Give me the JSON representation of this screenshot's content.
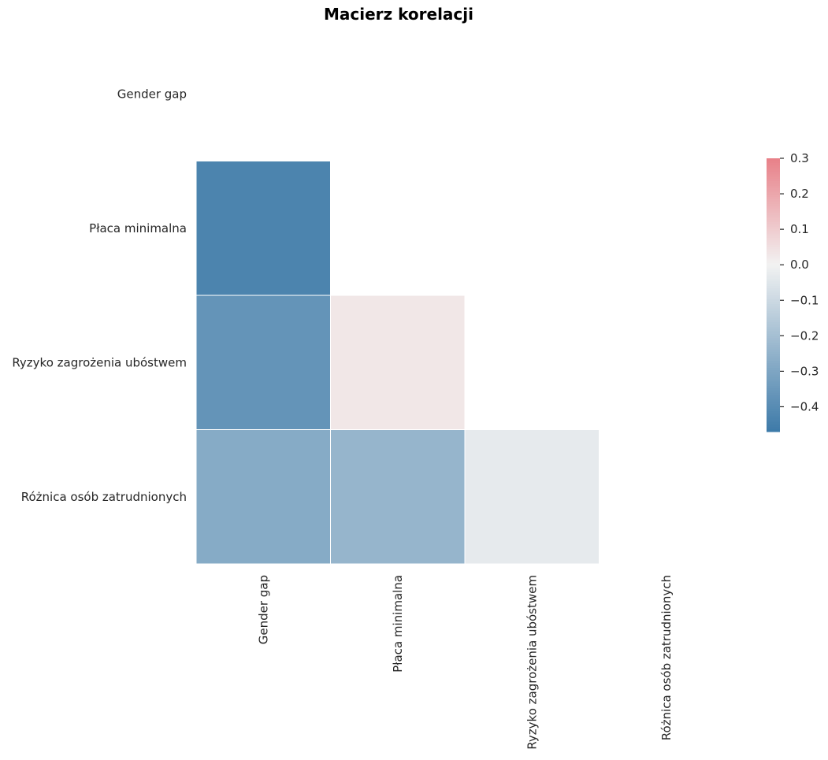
{
  "chart_data": {
    "type": "heatmap",
    "title": "Macierz korelacji",
    "variables": [
      "Gender gap",
      "Płaca minimalna",
      "Ryzyko zagrożenia ubóstwem",
      "Różnica osób zatrudnionych"
    ],
    "mask": "upper-triangle-including-diagonal",
    "cells": [
      {
        "row": 1,
        "col": 0,
        "value": -0.43
      },
      {
        "row": 2,
        "col": 0,
        "value": -0.37
      },
      {
        "row": 2,
        "col": 1,
        "value": 0.03
      },
      {
        "row": 3,
        "col": 0,
        "value": -0.28
      },
      {
        "row": 3,
        "col": 1,
        "value": -0.24
      },
      {
        "row": 3,
        "col": 2,
        "value": -0.03
      }
    ],
    "colorbar": {
      "min": -0.47,
      "max": 0.3,
      "center": 0.0,
      "ticks": [
        "0.3",
        "0.2",
        "0.1",
        "0.0",
        "−0.1",
        "−0.2",
        "−0.3",
        "−0.4"
      ],
      "tick_values": [
        0.3,
        0.2,
        0.1,
        0.0,
        -0.1,
        -0.2,
        -0.3,
        -0.4
      ]
    },
    "colors": {
      "negative": "#3d7aa8",
      "center": "#f2f2f2",
      "positive": "#e88088"
    }
  }
}
